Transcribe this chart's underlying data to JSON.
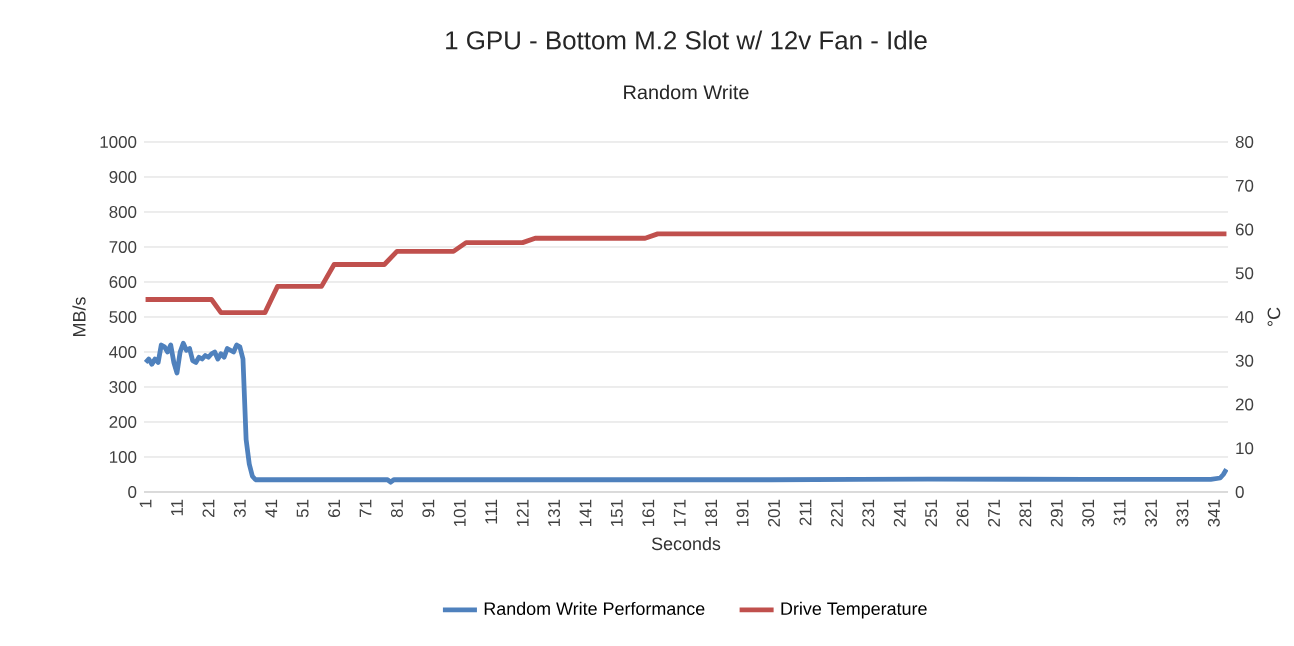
{
  "chart_data": {
    "type": "line",
    "title": "1 GPU - Bottom M.2 Slot w/ 12v Fan  - Idle",
    "subtitle": "Random Write",
    "xlabel": "Seconds",
    "ylabel": "MB/s",
    "y2label": "°C",
    "xlim": [
      0.5,
      345.5
    ],
    "xticks": [
      1,
      11,
      21,
      31,
      41,
      51,
      61,
      71,
      81,
      91,
      101,
      111,
      121,
      131,
      141,
      151,
      161,
      171,
      181,
      191,
      201,
      211,
      221,
      231,
      241,
      251,
      261,
      271,
      281,
      291,
      301,
      311,
      321,
      331,
      341
    ],
    "ylim": [
      0,
      1000
    ],
    "yticks": [
      0,
      100,
      200,
      300,
      400,
      500,
      600,
      700,
      800,
      900,
      1000
    ],
    "y2lim": [
      0,
      80
    ],
    "y2ticks": [
      0,
      10,
      20,
      30,
      40,
      50,
      60,
      70,
      80
    ],
    "grid": "y",
    "legend": "bottom",
    "marker": "none",
    "line_style": "solid",
    "series": [
      {
        "name": "Random Write Performance",
        "color": "#4f81bd",
        "x": [
          1,
          2,
          3,
          4,
          5,
          6,
          7,
          8,
          9,
          10,
          11,
          12,
          13,
          14,
          15,
          16,
          17,
          18,
          19,
          20,
          21,
          22,
          23,
          24,
          25,
          26,
          27,
          28,
          29,
          30,
          31,
          32,
          33,
          34,
          35,
          36,
          40,
          60,
          78,
          79,
          80,
          100,
          150,
          200,
          228,
          250,
          300,
          340,
          343,
          344,
          345
        ],
        "values": [
          370,
          380,
          365,
          380,
          370,
          420,
          415,
          400,
          420,
          370,
          340,
          400,
          425,
          405,
          410,
          375,
          370,
          385,
          380,
          390,
          385,
          395,
          400,
          380,
          395,
          385,
          410,
          405,
          400,
          420,
          415,
          380,
          150,
          80,
          45,
          35,
          35,
          35,
          35,
          28,
          35,
          35,
          35,
          35,
          36,
          37,
          36,
          36,
          40,
          50,
          65
        ]
      },
      {
        "name": "Drive Temperature",
        "color": "#c0504d",
        "axis": "y2",
        "x": [
          1,
          22,
          25,
          39,
          43,
          57,
          61,
          77,
          81,
          99,
          103,
          121,
          125,
          160,
          164,
          345
        ],
        "values": [
          44,
          44,
          41,
          41,
          47,
          47,
          52,
          52,
          55,
          55,
          57,
          57,
          58,
          58,
          59,
          59
        ]
      }
    ]
  }
}
